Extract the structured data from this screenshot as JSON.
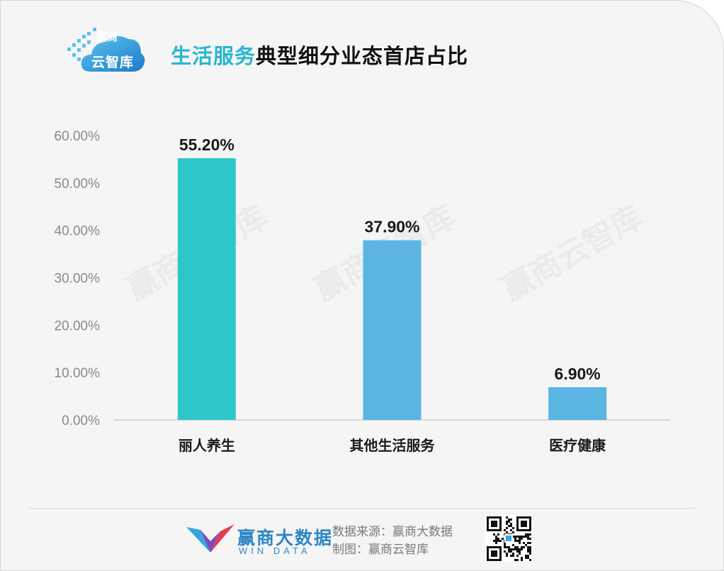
{
  "logo": {
    "line1": "赢商",
    "line2": "云智库"
  },
  "title": {
    "highlight": "生活服务",
    "rest": "典型细分业态首店占比"
  },
  "watermark": "赢商云智库",
  "colors": {
    "teal": "#2ec7c9",
    "blue": "#5ab5e3",
    "accent": "#27b7cf"
  },
  "chart_data": {
    "type": "bar",
    "title": "生活服务典型细分业态首店占比",
    "categories": [
      "丽人养生",
      "其他生活服务",
      "医疗健康"
    ],
    "values": [
      55.2,
      37.9,
      6.9
    ],
    "value_labels": [
      "55.20%",
      "37.90%",
      "6.90%"
    ],
    "bar_colors": [
      "#2ec7c9",
      "#5ab5e3",
      "#5ab5e3"
    ],
    "yticks": [
      "0.00%",
      "10.00%",
      "20.00%",
      "30.00%",
      "40.00%",
      "50.00%",
      "60.00%"
    ],
    "ylim": [
      0,
      60
    ],
    "xlabel": "",
    "ylabel": "",
    "grid": false
  },
  "footer": {
    "brand_cn": "赢商大数据",
    "brand_en": "WIN DATA",
    "source_line": "数据来源：赢商大数据",
    "made_line": "制图：赢商云智库",
    "qr_icon": "qr-code-icon"
  }
}
